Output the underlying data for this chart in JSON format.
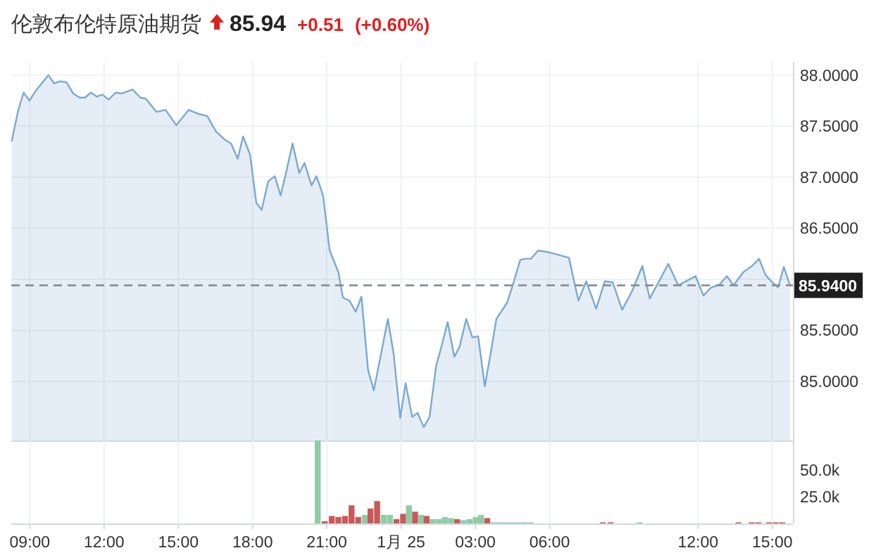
{
  "chart_data": [
    {
      "type": "area",
      "title": "伦敦布伦特原油期货",
      "annotations": [
        "85.94",
        "+0.51",
        "(+0.60%)"
      ],
      "xlim": [
        "--01-24T08:15",
        "--01-25T15:50"
      ],
      "ylim": [
        84.42,
        88.13
      ],
      "xticks": [
        {
          "value": "--01-24T09:00",
          "label": null
        },
        {
          "value": "--01-24T12:00",
          "label": null
        },
        {
          "value": "--01-24T15:00",
          "label": null
        },
        {
          "value": "--01-24T18:00",
          "label": null
        },
        {
          "value": "--01-24T21:00",
          "label": null
        },
        {
          "value": "--01-25T00:00",
          "label": null
        },
        {
          "value": "--01-25T03:00",
          "label": null
        },
        {
          "value": "--01-25T06:00",
          "label": null
        },
        {
          "value": "--01-25T12:00",
          "label": null
        },
        {
          "value": "--01-25T15:00",
          "label": null
        }
      ],
      "yticks": [
        {
          "value": 85,
          "label": "85.0000"
        },
        {
          "value": 85.5,
          "label": "85.5000"
        },
        {
          "value": 86,
          "label": null
        },
        {
          "value": 86.5,
          "label": "86.5000"
        },
        {
          "value": 87,
          "label": "87.0000"
        },
        {
          "value": 87.5,
          "label": "87.5000"
        },
        {
          "value": 88,
          "label": "88.0000"
        }
      ],
      "tick_labels": "y",
      "grid": true,
      "ref_lines": [
        {
          "axis": "y",
          "value": 85.94,
          "label": "85.9400",
          "color": "#8a8f96",
          "line_style": "dashed"
        }
      ],
      "series": [
        {
          "color": "#7ba9d1",
          "x": [
            "--01-24T08:16",
            "--01-24T08:32",
            "--01-24T08:45",
            "--01-24T08:59",
            "--01-24T09:15",
            "--01-24T09:31",
            "--01-24T09:45",
            "--01-24T09:59",
            "--01-24T10:13",
            "--01-24T10:29",
            "--01-24T10:45",
            "--01-24T11:01",
            "--01-24T11:14",
            "--01-24T11:28",
            "--01-24T11:42",
            "--01-24T11:56",
            "--01-24T12:11",
            "--01-24T12:28",
            "--01-24T12:43",
            "--01-24T13:09",
            "--01-24T13:28",
            "--01-24T13:41",
            "--01-24T14:07",
            "--01-24T14:29",
            "--01-24T14:55",
            "--01-24T15:25",
            "--01-24T15:49",
            "--01-24T16:10",
            "--01-24T16:31",
            "--01-24T16:52",
            "--01-24T17:08",
            "--01-24T17:24",
            "--01-24T17:37",
            "--01-24T17:54",
            "--01-24T18:09",
            "--01-24T18:22",
            "--01-24T18:38",
            "--01-24T18:54",
            "--01-24T19:08",
            "--01-24T19:21",
            "--01-24T19:37",
            "--01-24T19:53",
            "--01-24T20:06",
            "--01-24T20:23",
            "--01-24T20:35",
            "--01-24T20:51",
            "--01-24T21:07",
            "--01-24T21:28",
            "--01-24T21:39",
            "--01-24T21:55",
            "--01-24T22:10",
            "--01-24T22:24",
            "--01-24T22:40",
            "--01-24T22:54",
            "--01-24T23:28",
            "--01-24T23:42",
            "--01-24T23:58",
            "--01-25T00:11",
            "--01-25T00:27",
            "--01-25T00:40",
            "--01-25T00:55",
            "--01-25T01:09",
            "--01-25T01:25",
            "--01-25T01:38",
            "--01-25T01:53",
            "--01-25T02:09",
            "--01-25T02:22",
            "--01-25T02:38",
            "--01-25T02:53",
            "--01-25T03:07",
            "--01-25T03:23",
            "--01-25T03:38",
            "--01-25T03:51",
            "--01-25T04:17",
            "--01-25T04:30",
            "--01-25T04:49",
            "--01-25T05:01",
            "--01-25T05:15",
            "--01-25T05:32",
            "--01-25T05:50",
            "--01-25T06:02",
            "--01-25T06:47",
            "--01-25T07:10",
            "--01-25T07:29",
            "--01-25T07:53",
            "--01-25T08:14",
            "--01-25T08:33",
            "--01-25T08:56",
            "--01-25T09:21",
            "--01-25T09:45",
            "--01-25T10:03",
            "--01-25T10:48",
            "--01-25T11:12",
            "--01-25T11:54",
            "--01-25T12:13",
            "--01-25T12:32",
            "--01-25T12:50",
            "--01-25T13:10",
            "--01-25T13:26",
            "--01-25T13:50",
            "--01-25T14:11",
            "--01-25T14:28",
            "--01-25T14:44",
            "--01-25T15:00",
            "--01-25T15:14",
            "--01-25T15:28",
            "--01-25T15:43"
          ],
          "values": [
            87.35,
            87.66,
            87.83,
            87.75,
            87.85,
            87.93,
            88.0,
            87.92,
            87.94,
            87.93,
            87.82,
            87.78,
            87.78,
            87.83,
            87.79,
            87.81,
            87.76,
            87.83,
            87.82,
            87.86,
            87.78,
            87.77,
            87.64,
            87.66,
            87.51,
            87.66,
            87.62,
            87.6,
            87.45,
            87.37,
            87.33,
            87.18,
            87.4,
            87.22,
            86.75,
            86.68,
            86.96,
            87.01,
            86.82,
            87.04,
            87.33,
            87.04,
            87.14,
            86.92,
            87.01,
            86.82,
            86.28,
            86.07,
            85.82,
            85.79,
            85.68,
            85.83,
            85.11,
            84.91,
            85.61,
            85.27,
            84.64,
            84.98,
            84.65,
            84.69,
            84.55,
            84.65,
            85.15,
            85.34,
            85.58,
            85.24,
            85.34,
            85.61,
            85.43,
            85.44,
            84.95,
            85.29,
            85.61,
            85.77,
            85.93,
            86.19,
            86.2,
            86.2,
            86.28,
            86.27,
            86.26,
            86.21,
            85.79,
            85.98,
            85.71,
            85.98,
            85.97,
            85.7,
            85.89,
            86.13,
            85.81,
            86.15,
            85.94,
            86.03,
            85.84,
            85.92,
            85.94,
            86.03,
            85.94,
            86.07,
            86.13,
            86.2,
            86.04,
            85.97,
            85.92,
            86.12,
            85.94
          ]
        }
      ]
    },
    {
      "type": "bar",
      "xlim": [
        "--01-24T08:15",
        "--01-25T15:50"
      ],
      "ylim": [
        0,
        78000
      ],
      "xticks": [
        {
          "value": "--01-24T09:00",
          "label": "09:00"
        },
        {
          "value": "--01-24T12:00",
          "label": "12:00"
        },
        {
          "value": "--01-24T15:00",
          "label": "15:00"
        },
        {
          "value": "--01-24T18:00",
          "label": "18:00"
        },
        {
          "value": "--01-24T21:00",
          "label": "21:00"
        },
        {
          "value": "--01-25T00:00",
          "label": "1月 25"
        },
        {
          "value": "--01-25T03:00",
          "label": "03:00"
        },
        {
          "value": "--01-25T06:00",
          "label": "06:00"
        },
        {
          "value": "--01-25T12:00",
          "label": "12:00"
        },
        {
          "value": "--01-25T15:00",
          "label": "15:00"
        }
      ],
      "yticks": [
        {
          "value": 25000,
          "label": "25.0k"
        },
        {
          "value": 50000,
          "label": "50.0k"
        }
      ],
      "grid": "x",
      "x": [
        "--01-24T20:38",
        "--01-24T20:55",
        "--01-24T21:12",
        "--01-24T21:28",
        "--01-24T21:44",
        "--01-24T22:00",
        "--01-24T22:16",
        "--01-24T22:32",
        "--01-24T22:46",
        "--01-24T23:02",
        "--01-24T23:18",
        "--01-24T23:33",
        "--01-24T23:49",
        "--01-25T00:05",
        "--01-25T00:19",
        "--01-25T00:34",
        "--01-25T00:49",
        "--01-25T01:02",
        "--01-25T01:17",
        "--01-25T01:32",
        "--01-25T01:46",
        "--01-25T02:01",
        "--01-25T02:16",
        "--01-25T02:31",
        "--01-25T02:46",
        "--01-25T03:01",
        "--01-25T03:14",
        "--01-25T03:29",
        "--01-25T03:44",
        "--01-25T03:59",
        "--01-25T04:14",
        "--01-25T04:29",
        "--01-25T04:44",
        "--01-25T04:59",
        "--01-25T05:14",
        "--01-25T08:09",
        "--01-25T08:28",
        "--01-25T09:38",
        "--01-25T13:38",
        "--01-25T14:10",
        "--01-25T14:26",
        "--01-25T14:52",
        "--01-25T15:08",
        "--01-25T15:24"
      ],
      "values": [
        78000,
        2000,
        7000,
        6000,
        7000,
        17000,
        6000,
        8000,
        14000,
        21000,
        8000,
        8000,
        4000,
        9000,
        17000,
        11000,
        8000,
        7000,
        4000,
        4000,
        6000,
        5000,
        4000,
        3000,
        4000,
        6000,
        8000,
        5000,
        1000,
        1000,
        1000,
        1000,
        1000,
        1000,
        1000,
        1000,
        1000,
        1000,
        1000,
        1000,
        1000,
        1000,
        1000,
        1000
      ],
      "colors": [
        "#8fcca6",
        "#c9595a",
        "#c9595a",
        "#c9595a",
        "#c9595a",
        "#c9595a",
        "#c9595a",
        "#8fcca6",
        "#c9595a",
        "#c9595a",
        "#8fcca6",
        "#8fcca6",
        "#c9595a",
        "#c9595a",
        "#8fcca6",
        "#c9595a",
        "#8fcca6",
        "#c9595a",
        "#8fcca6",
        "#8fcca6",
        "#8fcca6",
        "#8fcca6",
        "#c9595a",
        "#8fcca6",
        "#8fcca6",
        "#8fcca6",
        "#8fcca6",
        "#c9595a",
        "#8fcca6",
        "#8fcca6",
        "#8fcca6",
        "#8fcca6",
        "#8fcca6",
        "#8fcca6",
        "#8fcca6",
        "#c9595a",
        "#c9595a",
        "#8fcca6",
        "#c9595a",
        "#c9595a",
        "#c9595a",
        "#c9595a",
        "#c9595a",
        "#c9595a"
      ]
    }
  ]
}
